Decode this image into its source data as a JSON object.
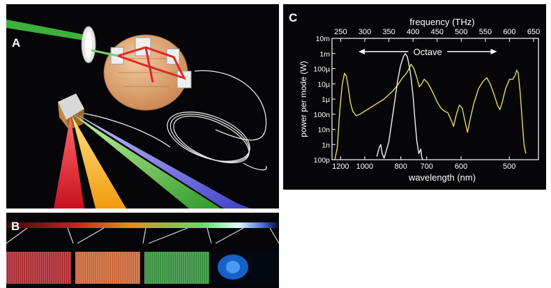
{
  "panels": {
    "a_label": "A",
    "b_label": "B",
    "c_label": "C"
  },
  "chart_data": {
    "type": "line",
    "top_axis_label": "frequency (THz)",
    "top_axis_ticks": [
      "250",
      "300",
      "350",
      "400",
      "450",
      "500",
      "550",
      "600",
      "650"
    ],
    "xlabel": "wavelength (nm)",
    "x_ticks": [
      "1200",
      "1000",
      "800",
      "700",
      "600",
      "500"
    ],
    "ylabel": "power per mode (W)",
    "y_ticks": [
      "10m",
      "1m",
      "100µ",
      "10µ",
      "1µ",
      "100n",
      "10n",
      "1n",
      "100p"
    ],
    "annotation": "Octave",
    "octave_range_thz": [
      287,
      574
    ],
    "ylim_log10_w": [
      -10,
      -2
    ],
    "xlim_thz": [
      232,
      660
    ],
    "series": [
      {
        "color": "#e4dc5a",
        "points": [
          [
            238,
            -10
          ],
          [
            243,
            -9.2
          ],
          [
            248,
            -6.8
          ],
          [
            253,
            -5.1
          ],
          [
            258,
            -4.3
          ],
          [
            262,
            -4.5
          ],
          [
            266,
            -5.3
          ],
          [
            270,
            -6.2
          ],
          [
            275,
            -6.8
          ],
          [
            282,
            -7.1
          ],
          [
            290,
            -7.0
          ],
          [
            300,
            -6.8
          ],
          [
            310,
            -6.6
          ],
          [
            320,
            -6.4
          ],
          [
            330,
            -6.2
          ],
          [
            340,
            -6.0
          ],
          [
            350,
            -5.7
          ],
          [
            360,
            -5.4
          ],
          [
            370,
            -5.0
          ],
          [
            378,
            -4.6
          ],
          [
            384,
            -4.4
          ],
          [
            390,
            -4.1
          ],
          [
            396,
            -3.7
          ],
          [
            402,
            -4.0
          ],
          [
            408,
            -4.6
          ],
          [
            413,
            -5.2
          ],
          [
            418,
            -5.0
          ],
          [
            423,
            -4.7
          ],
          [
            430,
            -4.9
          ],
          [
            440,
            -5.5
          ],
          [
            450,
            -6.2
          ],
          [
            458,
            -6.6
          ],
          [
            465,
            -6.8
          ],
          [
            472,
            -6.9
          ],
          [
            478,
            -7.3
          ],
          [
            484,
            -7.8
          ],
          [
            490,
            -7.0
          ],
          [
            496,
            -6.4
          ],
          [
            502,
            -6.6
          ],
          [
            508,
            -7.5
          ],
          [
            513,
            -8.2
          ],
          [
            518,
            -7.4
          ],
          [
            526,
            -6.3
          ],
          [
            536,
            -5.3
          ],
          [
            546,
            -4.8
          ],
          [
            553,
            -4.6
          ],
          [
            560,
            -5.0
          ],
          [
            568,
            -5.7
          ],
          [
            575,
            -6.4
          ],
          [
            580,
            -6.7
          ],
          [
            585,
            -6.2
          ],
          [
            592,
            -5.3
          ],
          [
            600,
            -4.7
          ],
          [
            607,
            -4.7
          ],
          [
            612,
            -4.4
          ],
          [
            615,
            -4.1
          ],
          [
            618,
            -4.3
          ],
          [
            622,
            -5.5
          ],
          [
            626,
            -7.3
          ],
          [
            630,
            -9.0
          ],
          [
            634,
            -9.6
          ]
        ]
      },
      {
        "color": "#f4f4f4",
        "points": [
          [
            325,
            -9.8
          ],
          [
            330,
            -9.2
          ],
          [
            333,
            -9.0
          ],
          [
            336,
            -9.6
          ],
          [
            340,
            -9.9
          ],
          [
            350,
            -8.8
          ],
          [
            360,
            -6.6
          ],
          [
            368,
            -4.8
          ],
          [
            374,
            -3.8
          ],
          [
            380,
            -3.2
          ],
          [
            384,
            -3.0
          ],
          [
            388,
            -3.2
          ],
          [
            392,
            -3.8
          ],
          [
            396,
            -4.6
          ],
          [
            400,
            -5.8
          ],
          [
            404,
            -7.4
          ],
          [
            408,
            -8.8
          ],
          [
            412,
            -9.6
          ],
          [
            416,
            -9.3
          ],
          [
            418,
            -9.8
          ],
          [
            420,
            -10
          ]
        ]
      }
    ]
  }
}
